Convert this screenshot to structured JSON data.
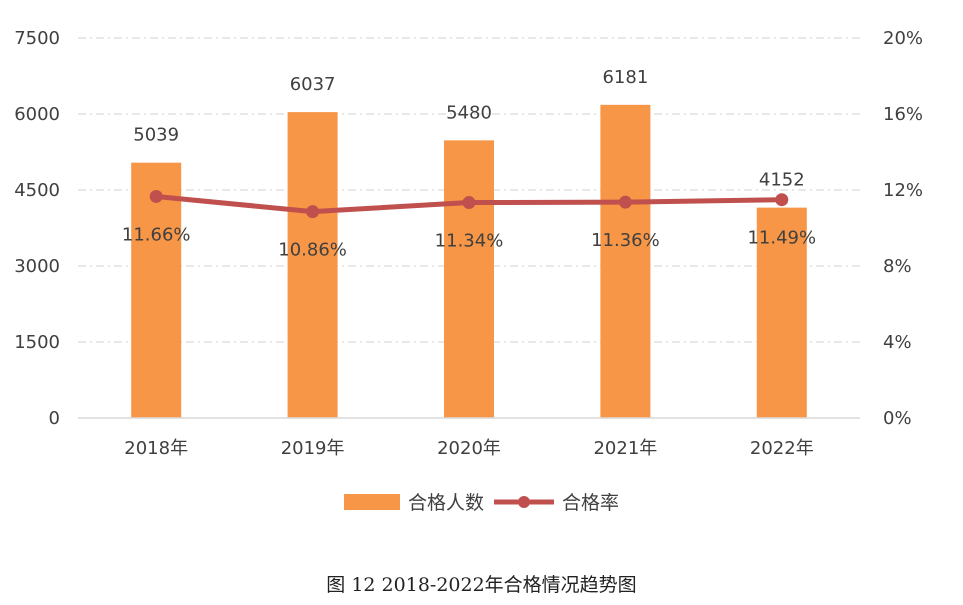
{
  "chart_data": {
    "type": "bar",
    "categories": [
      "2018年",
      "2019年",
      "2020年",
      "2021年",
      "2022年"
    ],
    "series": [
      {
        "name": "合格人数",
        "type": "bar",
        "axis": "left",
        "values": [
          5039,
          6037,
          5480,
          6181,
          4152
        ],
        "labels": [
          "5039",
          "6037",
          "5480",
          "6181",
          "4152"
        ],
        "color": "#F79646"
      },
      {
        "name": "合格率",
        "type": "line",
        "axis": "right",
        "values": [
          11.66,
          10.86,
          11.34,
          11.36,
          11.49
        ],
        "labels": [
          "11.66%",
          "10.86%",
          "11.34%",
          "11.36%",
          "11.49%"
        ],
        "color": "#C0504D"
      }
    ],
    "y_left": {
      "ticks": [
        "7500",
        "6000",
        "4500",
        "3000",
        "1500",
        "0"
      ],
      "min": 0,
      "max": 7500
    },
    "y_right": {
      "ticks": [
        "20%",
        "16%",
        "12%",
        "8%",
        "4%",
        "0%"
      ],
      "min": 0,
      "max": 20
    },
    "grid": "horizontal dashed",
    "legend_position": "bottom"
  },
  "caption": "图 12 2018-2022年合格情况趋势图"
}
